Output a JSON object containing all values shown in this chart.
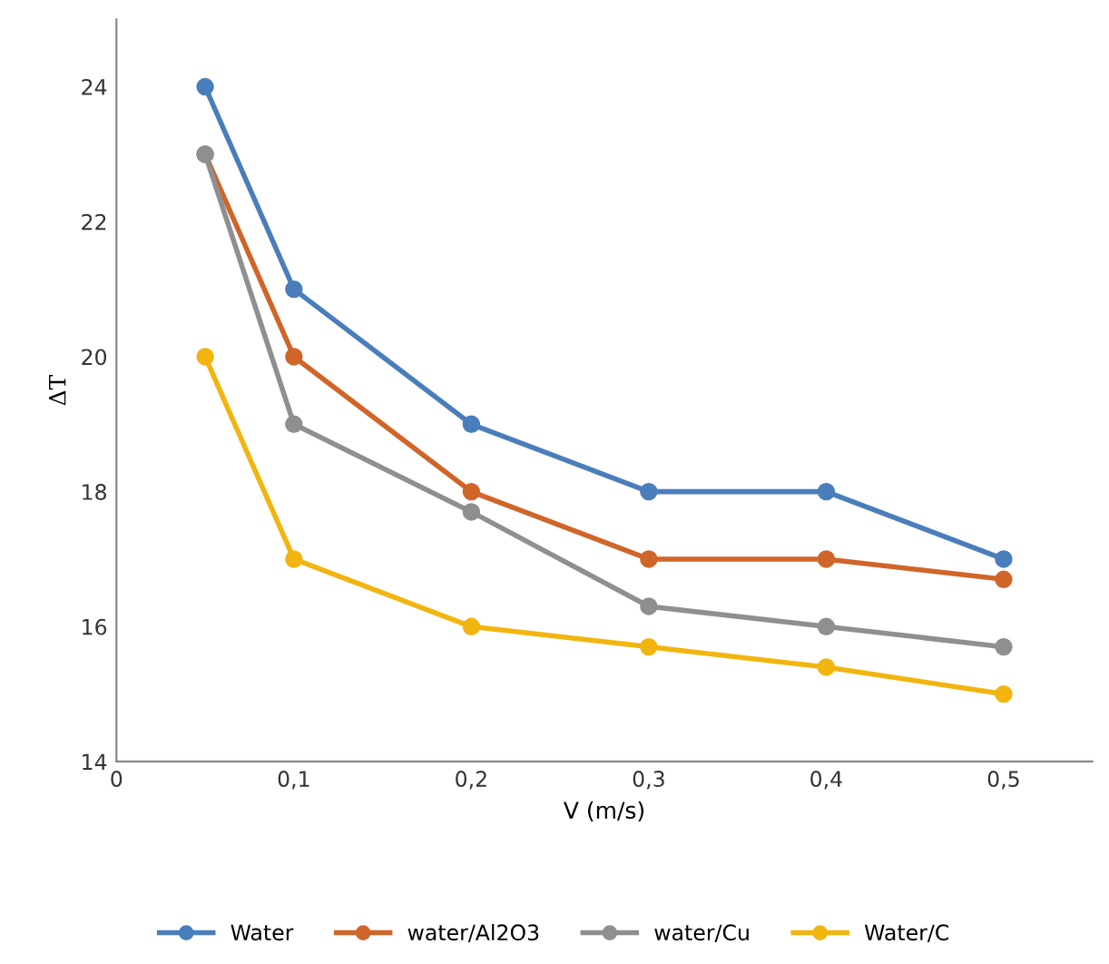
{
  "chart_data": {
    "type": "line",
    "xlabel": "V (m/s)",
    "ylabel": "ΔT",
    "x": [
      0.05,
      0.1,
      0.2,
      0.3,
      0.4,
      0.5
    ],
    "series": [
      {
        "name": "Water",
        "color": "#4a7ebb",
        "values": [
          24,
          21,
          19,
          18,
          18,
          17
        ]
      },
      {
        "name": "water/Al2O3",
        "color": "#d0652a",
        "values": [
          23,
          20,
          18,
          17,
          17,
          16.7
        ]
      },
      {
        "name": "water/Cu",
        "color": "#8f8f8f",
        "values": [
          23,
          19,
          17.7,
          16.3,
          16,
          15.7
        ]
      },
      {
        "name": "Water/C",
        "color": "#f2b50f",
        "values": [
          20,
          17,
          16,
          15.7,
          15.4,
          15
        ]
      }
    ],
    "xlim": [
      0,
      0.55
    ],
    "ylim": [
      14,
      25
    ],
    "xticks": [
      0,
      {
        "value": 0.1,
        "label": "0,1"
      },
      {
        "value": 0.2,
        "label": "0,2"
      },
      {
        "value": 0.3,
        "label": "0,3"
      },
      {
        "value": 0.4,
        "label": "0,4"
      },
      {
        "value": 0.5,
        "label": "0,5"
      }
    ],
    "yticks": [
      14,
      16,
      18,
      20,
      22,
      24
    ],
    "grid": false,
    "legend": "bottom",
    "marker": "circle",
    "line_style": "solid"
  }
}
